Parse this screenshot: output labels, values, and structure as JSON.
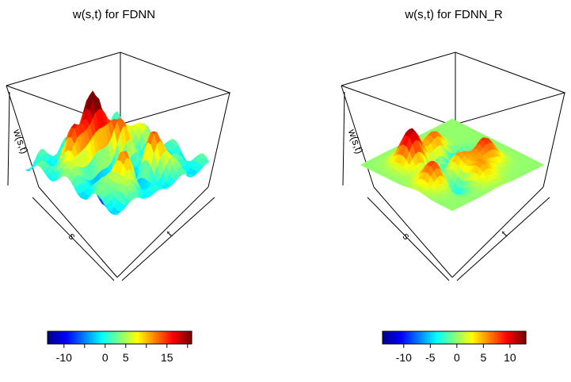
{
  "chart_data": [
    {
      "type": "surface",
      "title": "w(s,t) for FDNN",
      "xlabel": "s",
      "ylabel": "t",
      "zlabel": "w(s,t)",
      "colorbar": {
        "range": [
          -14,
          21
        ],
        "ticks": [
          -10,
          0,
          5,
          15
        ],
        "tick_labels": [
          "-10",
          "0",
          "5",
          "15"
        ]
      },
      "surface": {
        "base": 0,
        "peaks": [
          {
            "s": 0.62,
            "t": 0.32,
            "height": 21
          },
          {
            "s": 0.52,
            "t": 0.42,
            "height": 13
          },
          {
            "s": 0.4,
            "t": 0.5,
            "height": 9
          },
          {
            "s": 0.82,
            "t": 0.38,
            "height": 15
          },
          {
            "s": 0.36,
            "t": 0.78,
            "height": 14
          },
          {
            "s": 0.7,
            "t": 0.82,
            "height": 12
          },
          {
            "s": 0.3,
            "t": 0.2,
            "height": 8
          },
          {
            "s": 0.8,
            "t": 0.72,
            "height": 6
          },
          {
            "s": 0.55,
            "t": 0.6,
            "height": -12
          },
          {
            "s": 0.45,
            "t": 0.3,
            "height": -10
          },
          {
            "s": 0.75,
            "t": 0.58,
            "height": -9
          },
          {
            "s": 0.25,
            "t": 0.62,
            "height": -8
          },
          {
            "s": 0.6,
            "t": 0.85,
            "height": -7
          },
          {
            "s": 0.2,
            "t": 0.4,
            "height": 7
          }
        ],
        "ripple": 3
      }
    },
    {
      "type": "surface",
      "title": "w(s,t) for FDNN_R",
      "xlabel": "s",
      "ylabel": "t",
      "zlabel": "w(s,t)",
      "colorbar": {
        "range": [
          -14,
          13
        ],
        "ticks": [
          -10,
          -5,
          0,
          5,
          10
        ],
        "tick_labels": [
          "-10",
          "-5",
          "0",
          "5",
          "10"
        ]
      },
      "surface": {
        "base": 0,
        "peaks": [
          {
            "s": 0.72,
            "t": 0.28,
            "height": 13
          },
          {
            "s": 0.82,
            "t": 0.62,
            "height": 9
          },
          {
            "s": 0.45,
            "t": 0.28,
            "height": 8
          },
          {
            "s": 0.5,
            "t": 0.55,
            "height": 8
          },
          {
            "s": 0.3,
            "t": 0.65,
            "height": 9
          },
          {
            "s": 0.5,
            "t": 0.8,
            "height": 6
          },
          {
            "s": 0.38,
            "t": 0.45,
            "height": -12
          },
          {
            "s": 0.62,
            "t": 0.45,
            "height": -6
          },
          {
            "s": 0.68,
            "t": 0.72,
            "height": -5
          }
        ],
        "ripple": 0
      }
    }
  ]
}
